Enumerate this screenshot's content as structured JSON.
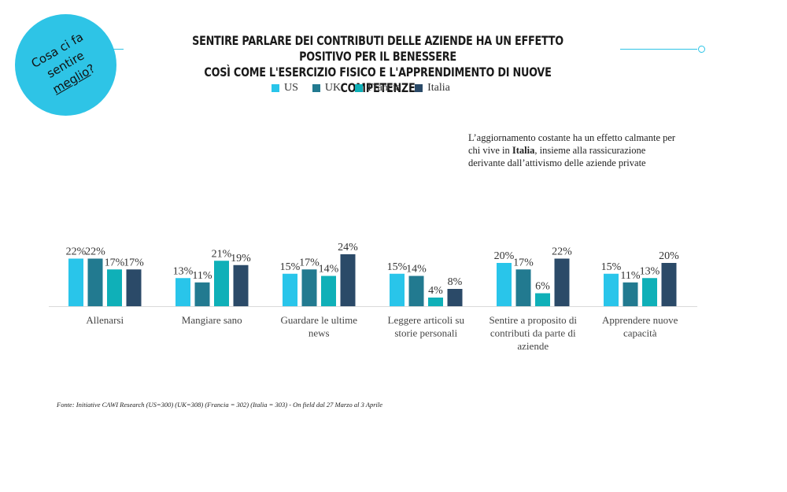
{
  "badge": {
    "line1": "Cosa ci fa",
    "line2": "sentire",
    "line3": "meglio",
    "line3_suffix": "?"
  },
  "title": {
    "line1": "SENTIRE PARLARE DEI CONTRIBUTI DELLE AZIENDE HA UN EFFETTO POSITIVO PER IL BENESSERE",
    "line2": "COSÌ COME L'ESERCIZIO FISICO E L'APPRENDIMENTO DI NUOVE COMPETENZE"
  },
  "note": {
    "before": "L’aggiornamento costante ha un effetto calmante per chi vive in ",
    "highlight": "Italia",
    "after": ", insieme alla rassicurazione derivante dall’attivismo delle aziende private"
  },
  "source": "Fonte: Initiative CAWI Research (US=300) (UK=308) (Francia = 302) (Italia = 303) -  On field dal 27 Marzo al 3 Aprile",
  "chart_data": {
    "type": "bar",
    "categories": [
      [
        "Allenarsi"
      ],
      [
        "Mangiare sano"
      ],
      [
        "Guardare le ultime",
        "news"
      ],
      [
        "Leggere articoli su",
        "storie personali"
      ],
      [
        "Sentire a proposito di",
        "contributi da parte di",
        "aziende"
      ],
      [
        "Apprendere nuove",
        "capacità"
      ]
    ],
    "series": [
      {
        "name": "US",
        "color": "#29c5ea",
        "values": [
          22,
          13,
          15,
          15,
          20,
          15
        ]
      },
      {
        "name": "UK",
        "color": "#227a90",
        "values": [
          22,
          11,
          17,
          14,
          17,
          11
        ]
      },
      {
        "name": "Francia",
        "color": "#0fb0b8",
        "values": [
          17,
          21,
          14,
          4,
          6,
          13
        ]
      },
      {
        "name": "Italia",
        "color": "#2b4a68",
        "values": [
          17,
          19,
          24,
          8,
          22,
          20
        ]
      }
    ],
    "value_suffix": "%",
    "ylim": [
      0,
      24
    ],
    "grid": false,
    "legend_position": "top"
  }
}
